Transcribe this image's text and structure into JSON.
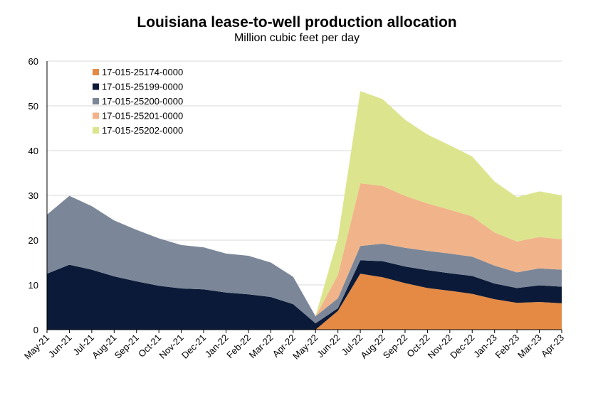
{
  "chart_data": {
    "type": "area",
    "stacked": true,
    "title": "Louisiana lease-to-well production allocation",
    "subtitle": "Million cubic feet per day",
    "xlabel": "",
    "ylabel": "",
    "ylim": [
      0,
      60
    ],
    "yticks": [
      0,
      10,
      20,
      30,
      40,
      50,
      60
    ],
    "grid": true,
    "legend_position": "top-left",
    "categories": [
      "May-21",
      "Jun-21",
      "Jul-21",
      "Aug-21",
      "Sep-21",
      "Oct-21",
      "Nov-21",
      "Dec-21",
      "Jan-22",
      "Feb-22",
      "Mar-22",
      "Apr-22",
      "May-22",
      "Jun-22",
      "Jul-22",
      "Aug-22",
      "Sep-22",
      "Oct-22",
      "Nov-22",
      "Dec-22",
      "Jan-23",
      "Feb-23",
      "Mar-23",
      "Apr-23"
    ],
    "series": [
      {
        "name": "17-015-25174-0000",
        "color": "#e48a44",
        "values": [
          0,
          0,
          0,
          0,
          0,
          0,
          0,
          0,
          0,
          0,
          0,
          0,
          0,
          4.2,
          12.5,
          11.7,
          10.4,
          9.3,
          8.7,
          8.0,
          6.8,
          6.0,
          6.2,
          5.9
        ]
      },
      {
        "name": "17-015-25199-0000",
        "color": "#0b1a38",
        "values": [
          12.5,
          14.5,
          13.4,
          11.9,
          10.8,
          9.8,
          9.2,
          9.0,
          8.3,
          7.9,
          7.3,
          5.7,
          1.4,
          0.6,
          3.0,
          3.6,
          3.7,
          4.0,
          3.9,
          4.0,
          3.5,
          3.3,
          3.7,
          3.7
        ]
      },
      {
        "name": "17-015-25200-0000",
        "color": "#7b8798",
        "values": [
          13.2,
          15.4,
          14.2,
          12.5,
          11.5,
          10.6,
          9.7,
          9.4,
          8.7,
          8.6,
          7.7,
          6.1,
          1.6,
          2.2,
          3.2,
          3.9,
          4.2,
          4.3,
          4.4,
          4.3,
          4.0,
          3.5,
          3.8,
          3.8
        ]
      },
      {
        "name": "17-015-25201-0000",
        "color": "#f1b48a",
        "values": [
          0,
          0,
          0,
          0,
          0,
          0,
          0,
          0,
          0,
          0,
          0,
          0,
          0,
          5.2,
          14.0,
          12.9,
          11.6,
          10.6,
          9.8,
          9.0,
          7.4,
          6.9,
          7.0,
          6.8
        ]
      },
      {
        "name": "17-015-25202-0000",
        "color": "#dce58e",
        "values": [
          0,
          0,
          0,
          0,
          0,
          0,
          0,
          0,
          0,
          0,
          0,
          0,
          0,
          8.3,
          20.6,
          19.4,
          17.0,
          15.4,
          14.4,
          13.4,
          11.4,
          9.9,
          10.2,
          9.8
        ]
      }
    ]
  }
}
